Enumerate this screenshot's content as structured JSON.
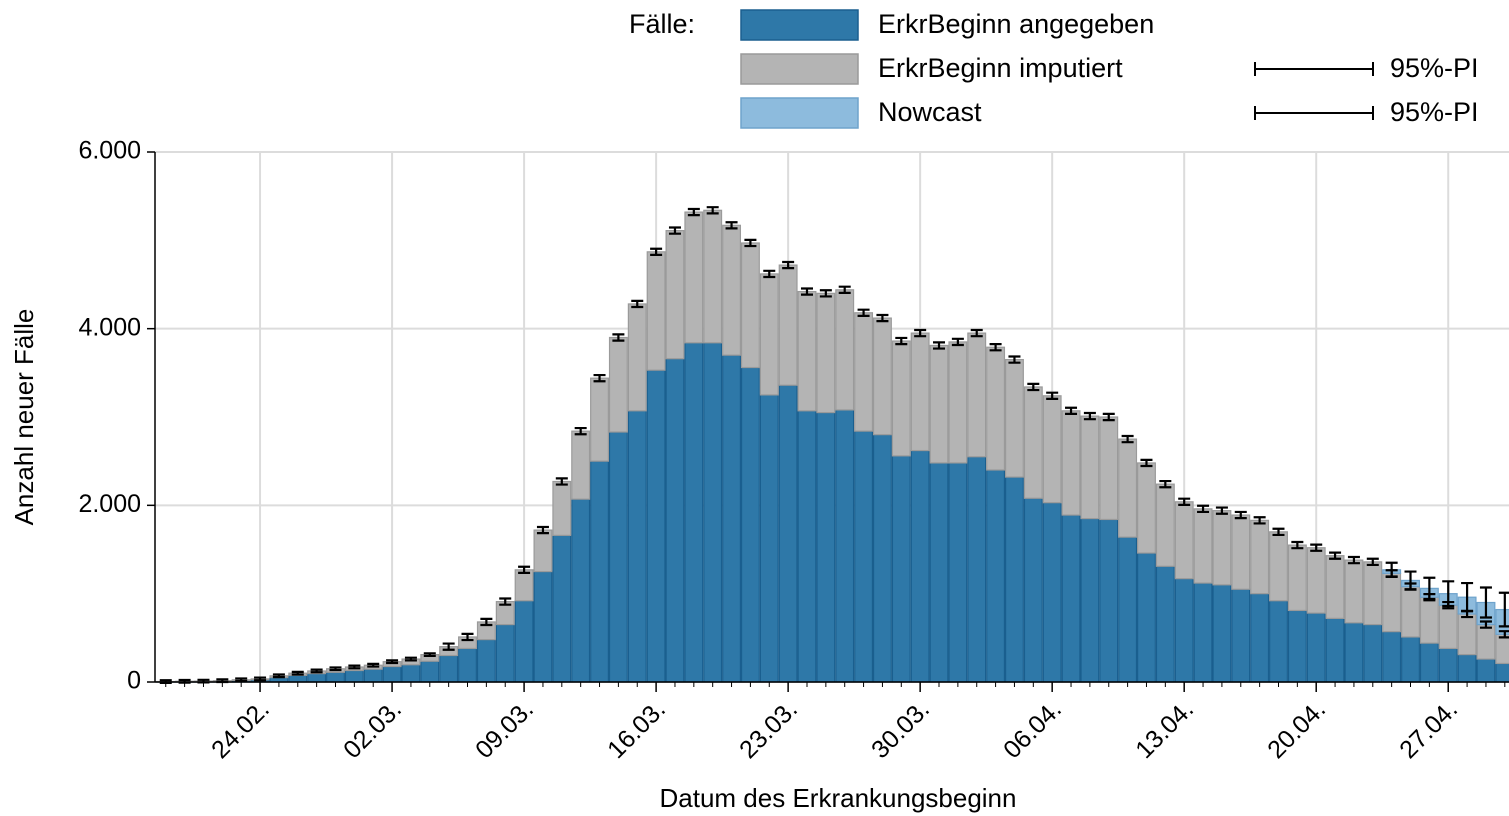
{
  "chart_data": {
    "type": "stacked_bar",
    "x_label": "Datum des Erkrankungsbeginn",
    "y_label": "Anzahl neuer Fälle",
    "legend_title": "Fälle:",
    "grid": true,
    "ylim": [
      0,
      6000
    ],
    "yticks": [
      0,
      {
        "value": 2000,
        "label": "2.000"
      },
      {
        "value": 4000,
        "label": "4.000"
      },
      {
        "value": 6000,
        "label": "6.000"
      }
    ],
    "categories": [
      null,
      null,
      null,
      null,
      null,
      "24.02.",
      null,
      null,
      null,
      null,
      null,
      null,
      "02.03.",
      null,
      null,
      null,
      null,
      null,
      null,
      "09.03.",
      null,
      null,
      null,
      null,
      null,
      null,
      "16.03.",
      null,
      null,
      null,
      null,
      null,
      null,
      "23.03.",
      null,
      null,
      null,
      null,
      null,
      null,
      "30.03.",
      null,
      null,
      null,
      null,
      null,
      null,
      "06.04.",
      null,
      null,
      null,
      null,
      null,
      null,
      "13.04.",
      null,
      null,
      null,
      null,
      null,
      null,
      "20.04.",
      null,
      null,
      null,
      null,
      null,
      null,
      "27.04.",
      null,
      null,
      null
    ],
    "series": [
      {
        "name": "ErkrBeginn angegeben",
        "color": "#2e78a8",
        "stroke": "#1a5f8f",
        "values": [
          3,
          5,
          7,
          10,
          18,
          25,
          50,
          75,
          95,
          110,
          130,
          145,
          175,
          195,
          235,
          300,
          380,
          480,
          650,
          920,
          1250,
          1660,
          2070,
          2500,
          2830,
          3070,
          3530,
          3660,
          3840,
          3840,
          3700,
          3560,
          3250,
          3360,
          3070,
          3050,
          3080,
          2840,
          2800,
          2560,
          2620,
          2480,
          2480,
          2550,
          2400,
          2320,
          2080,
          2030,
          1890,
          1850,
          1840,
          1640,
          1460,
          1310,
          1170,
          1120,
          1100,
          1050,
          1000,
          920,
          810,
          780,
          720,
          670,
          650,
          570,
          510,
          440,
          380,
          310,
          260,
          210
        ]
      },
      {
        "name": "ErkrBeginn imputiert",
        "color": "#b4b4b4",
        "stroke": "#9a9a9a",
        "interval_label": "95%-PI",
        "values": [
          2,
          3,
          3,
          5,
          7,
          10,
          20,
          25,
          30,
          40,
          40,
          45,
          55,
          65,
          75,
          100,
          130,
          200,
          260,
          350,
          470,
          610,
          770,
          940,
          1070,
          1210,
          1340,
          1450,
          1480,
          1500,
          1470,
          1410,
          1370,
          1360,
          1350,
          1350,
          1360,
          1340,
          1320,
          1300,
          1330,
          1330,
          1370,
          1400,
          1390,
          1330,
          1260,
          1210,
          1180,
          1160,
          1160,
          1110,
          1020,
          930,
          870,
          840,
          840,
          840,
          830,
          780,
          740,
          740,
          710,
          710,
          710,
          660,
          570,
          520,
          490,
          460,
          390,
          330
        ],
        "errors": [
          15,
          15,
          15,
          15,
          15,
          15,
          15,
          15,
          15,
          15,
          15,
          15,
          15,
          15,
          15,
          35,
          35,
          35,
          35,
          35,
          35,
          35,
          35,
          35,
          35,
          35,
          35,
          35,
          35,
          35,
          35,
          35,
          35,
          35,
          35,
          35,
          35,
          35,
          35,
          35,
          35,
          35,
          35,
          35,
          35,
          35,
          35,
          35,
          35,
          35,
          35,
          35,
          35,
          35,
          35,
          35,
          35,
          35,
          35,
          35,
          35,
          35,
          35,
          35,
          35,
          35,
          35,
          35,
          35,
          35,
          35,
          35
        ]
      },
      {
        "name": "Nowcast",
        "color": "#8dbbdd",
        "stroke": "#6ea3cc",
        "interval_label": "95%-PI",
        "values": [
          null,
          null,
          null,
          null,
          null,
          null,
          null,
          null,
          null,
          null,
          null,
          null,
          null,
          null,
          null,
          null,
          null,
          null,
          null,
          null,
          null,
          null,
          null,
          null,
          null,
          null,
          null,
          null,
          null,
          null,
          null,
          null,
          null,
          null,
          null,
          null,
          null,
          null,
          null,
          null,
          null,
          null,
          null,
          null,
          null,
          null,
          null,
          null,
          null,
          null,
          null,
          null,
          null,
          null,
          null,
          null,
          null,
          null,
          null,
          null,
          null,
          null,
          null,
          null,
          null,
          40,
          70,
          100,
          130,
          190,
          250,
          280
        ],
        "errors": [
          null,
          null,
          null,
          null,
          null,
          null,
          null,
          null,
          null,
          null,
          null,
          null,
          null,
          null,
          null,
          null,
          null,
          null,
          null,
          null,
          null,
          null,
          null,
          null,
          null,
          null,
          null,
          null,
          null,
          null,
          null,
          null,
          null,
          null,
          null,
          null,
          null,
          null,
          null,
          null,
          null,
          null,
          null,
          null,
          null,
          null,
          null,
          null,
          null,
          null,
          null,
          null,
          null,
          null,
          null,
          null,
          null,
          null,
          null,
          null,
          null,
          null,
          null,
          null,
          null,
          80,
          100,
          120,
          140,
          160,
          170,
          190
        ]
      }
    ]
  }
}
